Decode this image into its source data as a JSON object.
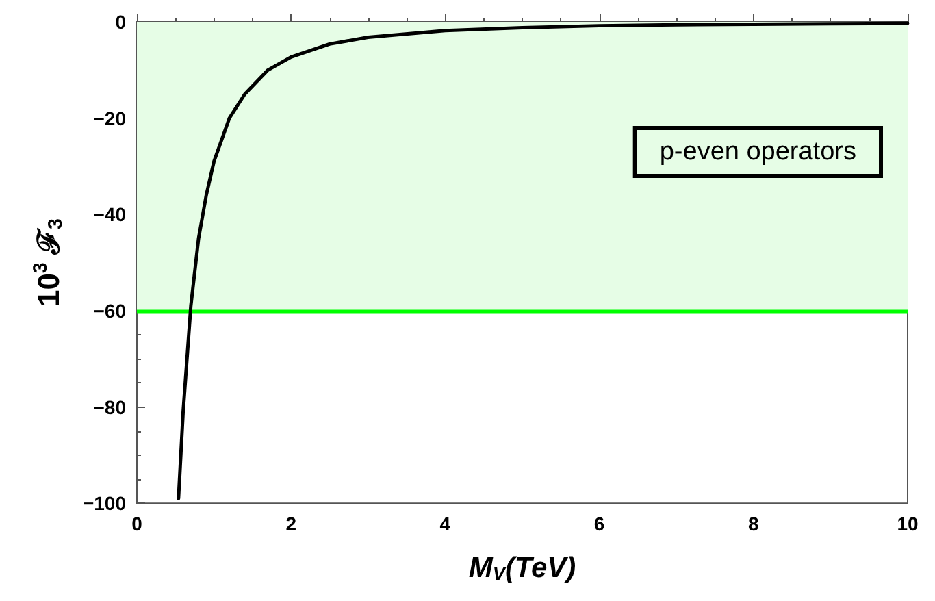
{
  "chart_data": {
    "type": "line",
    "xlabel": "M$_{V}$(TeV)",
    "ylabel": "10$^{3}$ ℱ$_{3}$",
    "x": [
      0.54,
      0.6,
      0.7,
      0.8,
      0.9,
      1,
      1.2,
      1.4,
      1.7,
      2,
      2.5,
      3,
      4,
      5,
      6,
      7,
      8,
      9,
      10
    ],
    "series": [
      {
        "color": "#000000",
        "values": [
          -99,
          -81,
          -59,
          -45,
          -36,
          -29,
          -20,
          -15,
          -10,
          -7.3,
          -4.6,
          -3.2,
          -1.8,
          -1.2,
          -0.8,
          -0.6,
          -0.5,
          -0.4,
          -0.3
        ]
      }
    ],
    "xlim": [
      0,
      10
    ],
    "xticks": [
      0,
      2,
      4,
      6,
      8,
      10
    ],
    "ylim": [
      -100,
      0
    ],
    "yticks": [
      -100,
      -80,
      -60,
      -40,
      -20,
      0
    ],
    "bands": [
      {
        "axis": "y",
        "from": -60,
        "to": 0,
        "color": "#e6fde6"
      }
    ],
    "ref_lines": [
      {
        "axis": "y",
        "value": -60,
        "color": "#00ff00"
      }
    ],
    "annotations": [
      "p-even operators"
    ],
    "grid": false,
    "marker": "none",
    "line_style": "solid"
  }
}
